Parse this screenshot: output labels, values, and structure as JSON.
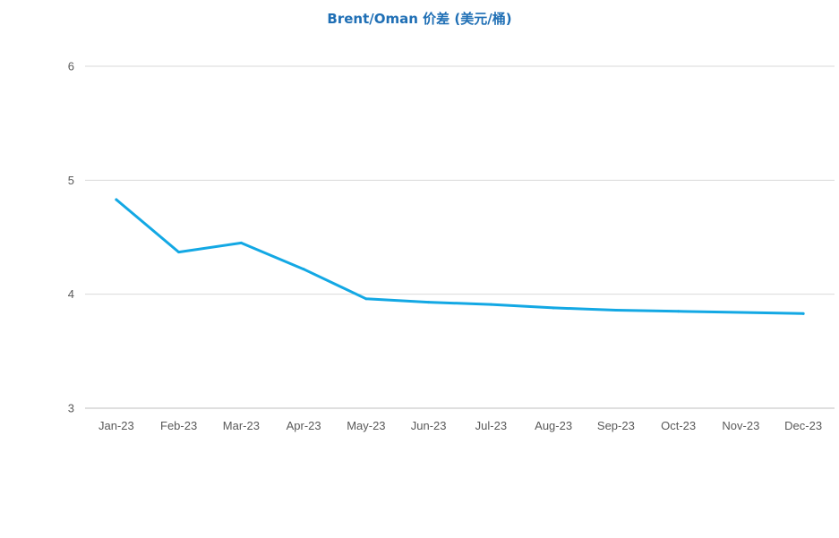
{
  "chart_data": {
    "type": "line",
    "title": "Brent/Oman 价差 (美元/桶)",
    "xlabel": "",
    "ylabel": "",
    "categories": [
      "Jan-23",
      "Feb-23",
      "Mar-23",
      "Apr-23",
      "May-23",
      "Jun-23",
      "Jul-23",
      "Aug-23",
      "Sep-23",
      "Oct-23",
      "Nov-23",
      "Dec-23"
    ],
    "series": [
      {
        "values": [
          4.83,
          4.37,
          4.45,
          4.22,
          3.96,
          3.93,
          3.91,
          3.88,
          3.86,
          3.85,
          3.84,
          3.83
        ]
      }
    ],
    "ylim": [
      3,
      6
    ],
    "yticks": [
      "3",
      "4",
      "5",
      "6"
    ],
    "grid": true,
    "legend": "none",
    "colors": {
      "line": "#13a8e4",
      "title": "#1f6fb5"
    }
  }
}
